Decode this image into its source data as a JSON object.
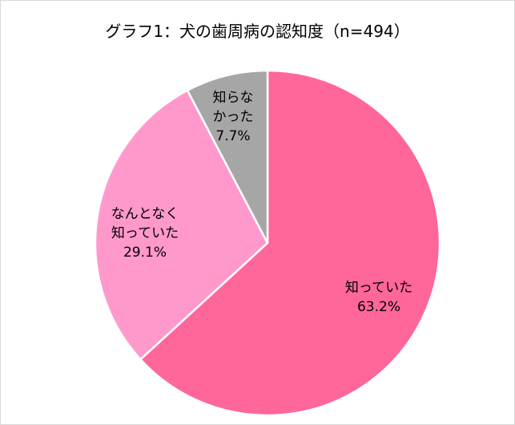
{
  "chart_data": {
    "type": "pie",
    "title": "グラフ1：犬の歯周病の認知度（n=494）",
    "categories": [
      "知っていた",
      "なんとなく知っていた",
      "知らなかった"
    ],
    "values": [
      63.2,
      29.1,
      7.7
    ],
    "value_labels": [
      "63.2%",
      "29.1%",
      "7.7%"
    ],
    "colors": [
      "#ff6699",
      "#ff99cc",
      "#a6a6a6"
    ]
  }
}
